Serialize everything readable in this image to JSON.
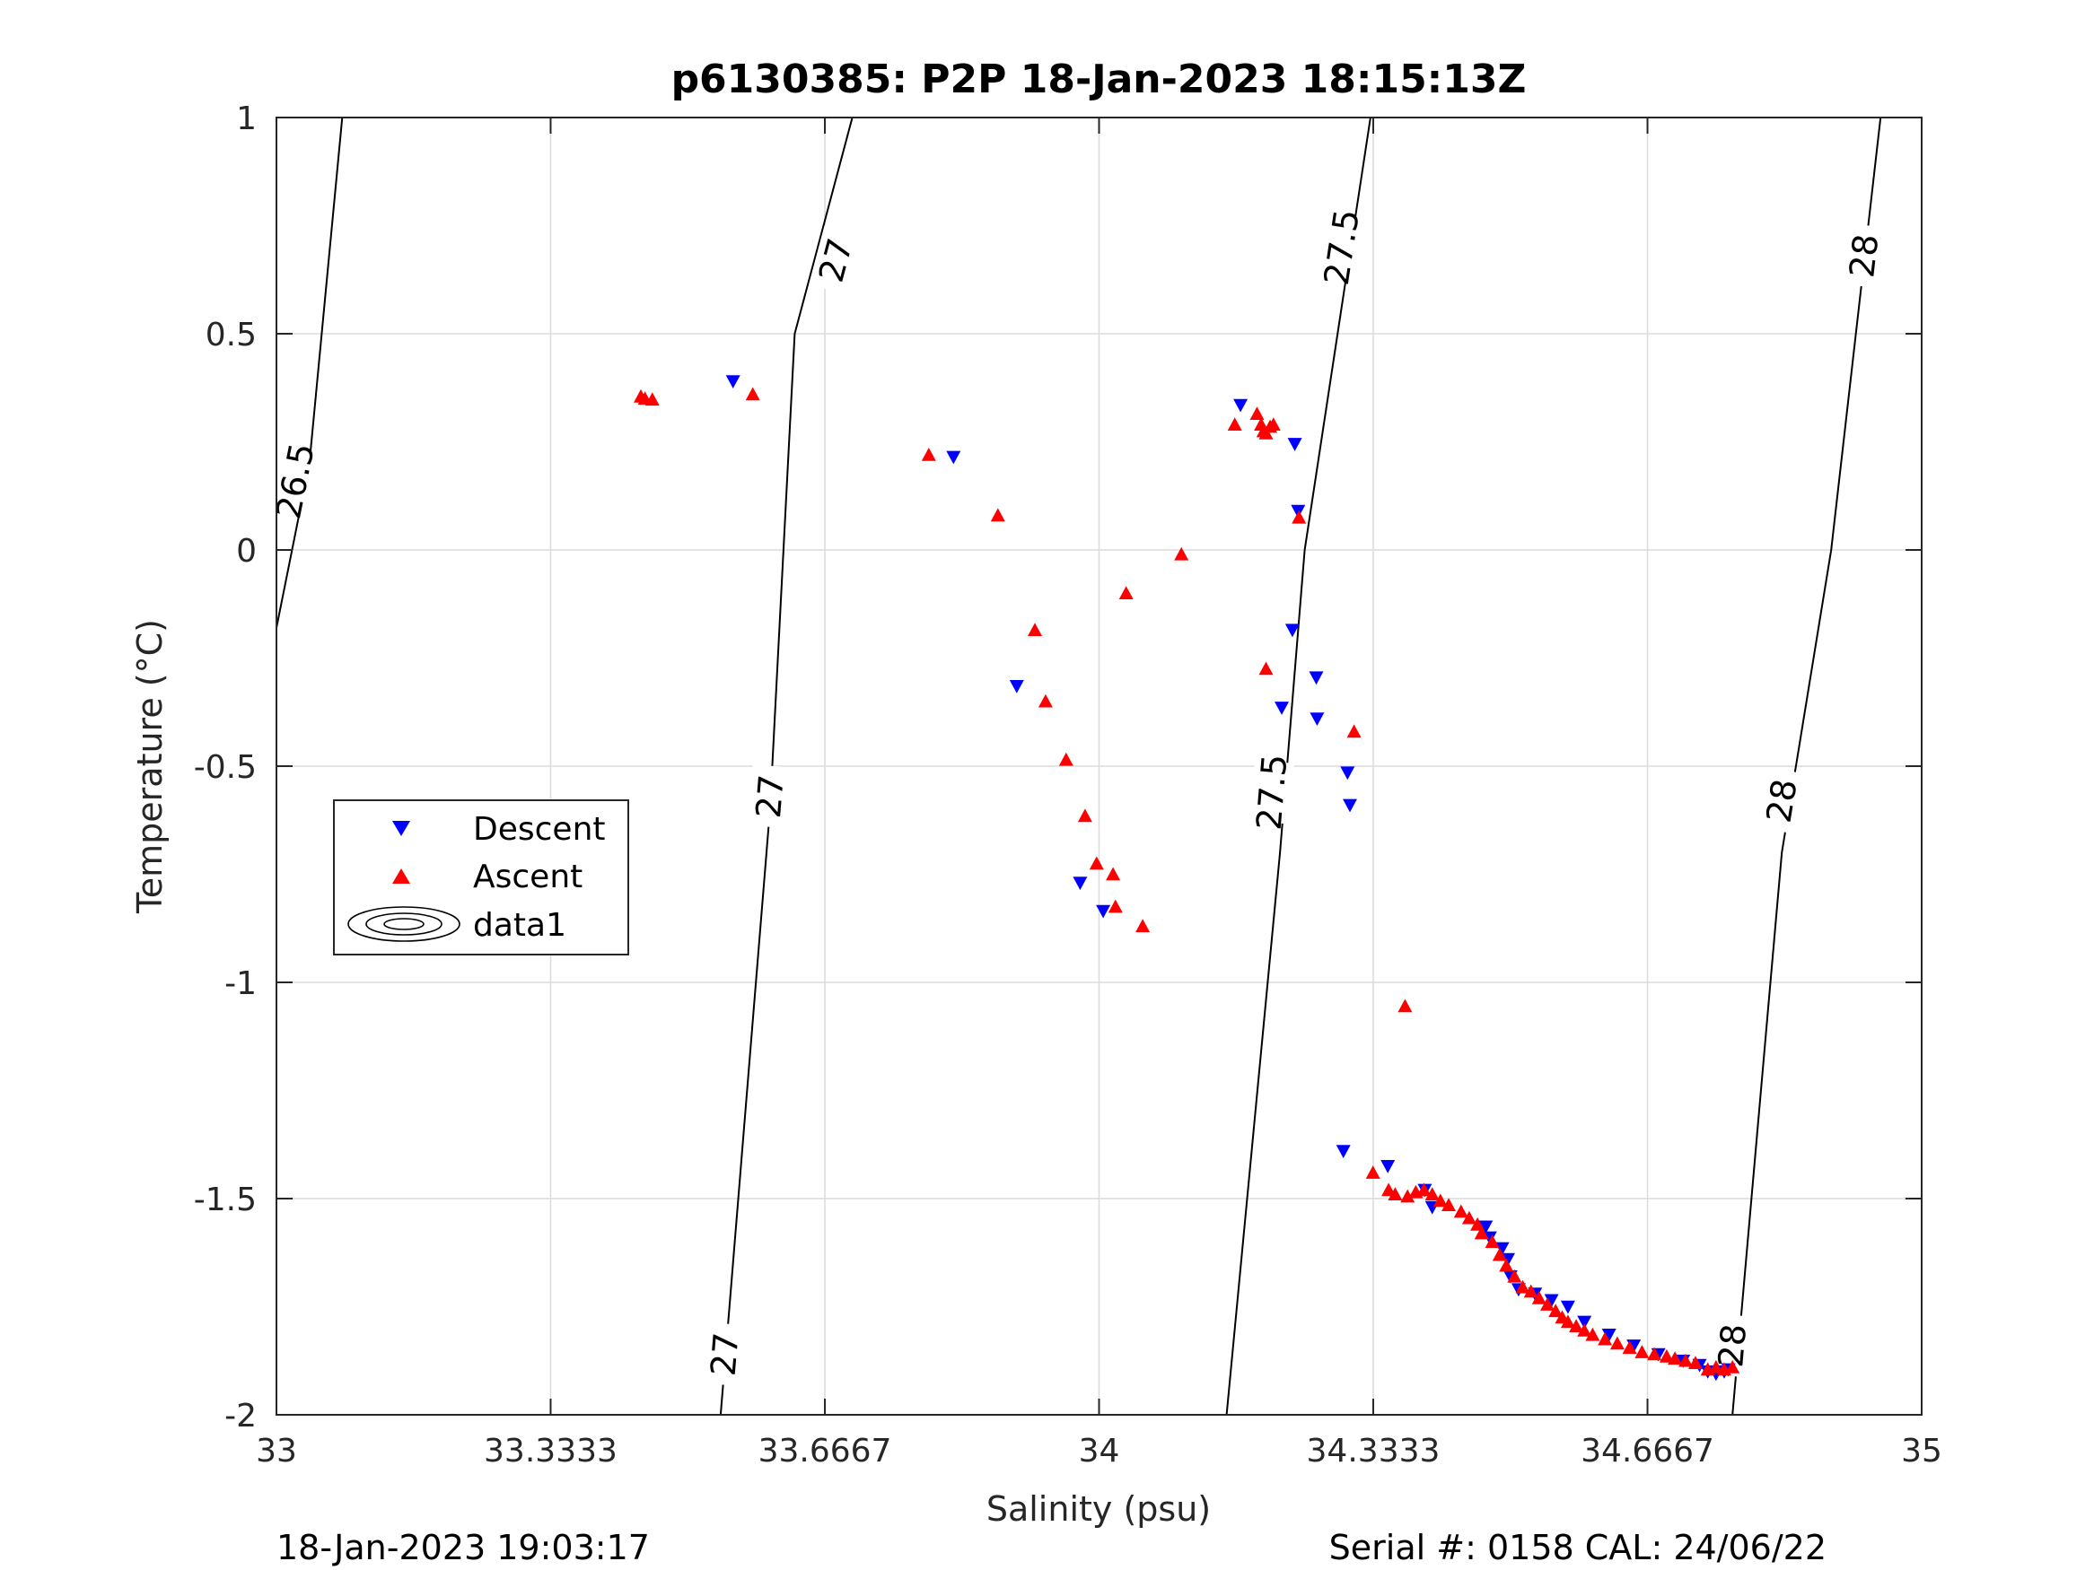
{
  "chart_data": {
    "type": "scatter",
    "title": "p6130385: P2P 18-Jan-2023 18:15:13Z",
    "xlabel": "Salinity (psu)",
    "ylabel": "Temperature (°C)",
    "xlim": [
      33,
      35
    ],
    "ylim": [
      -2,
      1
    ],
    "grid": true,
    "legend_position": "middle-left",
    "x_ticks": [
      33,
      33.3333,
      33.6667,
      34,
      34.3333,
      34.6667,
      35
    ],
    "x_tick_labels": [
      "33",
      "33.3333",
      "33.6667",
      "34",
      "34.3333",
      "34.6667",
      "35"
    ],
    "y_ticks": [
      1,
      0.5,
      0,
      -0.5,
      -1,
      -1.5,
      -2
    ],
    "y_tick_labels": [
      "1",
      "0.5",
      "0",
      "-0.5",
      "-1",
      "-1.5",
      "-2"
    ],
    "contours": [
      {
        "level": "26.5",
        "points": [
          [
            33.0,
            -0.18
          ],
          [
            33.04,
            0.2
          ],
          [
            33.08,
            1.0
          ]
        ],
        "label_points": [
          [
            33.023,
            0.16
          ]
        ]
      },
      {
        "level": "27",
        "points": [
          [
            33.54,
            -2.0
          ],
          [
            33.6,
            -0.6
          ],
          [
            33.63,
            0.5
          ],
          [
            33.7,
            1.0
          ]
        ],
        "label_points": [
          [
            33.545,
            -1.86
          ],
          [
            33.6,
            -0.57
          ],
          [
            33.68,
            0.67
          ]
        ]
      },
      {
        "level": "27.5",
        "points": [
          [
            34.155,
            -2.0
          ],
          [
            34.22,
            -0.7
          ],
          [
            34.25,
            0.0
          ],
          [
            34.33,
            1.0
          ]
        ],
        "label_points": [
          [
            34.21,
            -0.56
          ],
          [
            34.295,
            0.7
          ]
        ]
      },
      {
        "level": "28",
        "points": [
          [
            34.77,
            -2.0
          ],
          [
            34.83,
            -0.7
          ],
          [
            34.89,
            0.0
          ],
          [
            34.95,
            1.0
          ]
        ],
        "label_points": [
          [
            34.77,
            -1.84
          ],
          [
            34.83,
            -0.58
          ],
          [
            34.93,
            0.68
          ]
        ]
      }
    ],
    "series": [
      {
        "name": "Descent",
        "marker": "triangle-down",
        "color": "#0000ff",
        "points": [
          [
            33.555,
            0.39
          ],
          [
            33.823,
            0.215
          ],
          [
            33.9,
            -0.315
          ],
          [
            33.977,
            -0.77
          ],
          [
            34.005,
            -0.835
          ],
          [
            34.172,
            0.335
          ],
          [
            34.238,
            0.245
          ],
          [
            34.242,
            0.09
          ],
          [
            34.235,
            -0.185
          ],
          [
            34.222,
            -0.365
          ],
          [
            34.264,
            -0.295
          ],
          [
            34.265,
            -0.39
          ],
          [
            34.302,
            -0.515
          ],
          [
            34.305,
            -0.59
          ],
          [
            34.297,
            -1.39
          ],
          [
            34.351,
            -1.425
          ],
          [
            34.396,
            -1.48
          ],
          [
            34.405,
            -1.52
          ],
          [
            34.47,
            -1.565
          ],
          [
            34.475,
            -1.59
          ],
          [
            34.49,
            -1.615
          ],
          [
            34.497,
            -1.64
          ],
          [
            34.5,
            -1.68
          ],
          [
            34.51,
            -1.71
          ],
          [
            34.53,
            -1.72
          ],
          [
            34.55,
            -1.735
          ],
          [
            34.57,
            -1.75
          ],
          [
            34.59,
            -1.785
          ],
          [
            34.62,
            -1.815
          ],
          [
            34.65,
            -1.84
          ],
          [
            34.68,
            -1.86
          ],
          [
            34.71,
            -1.875
          ],
          [
            34.73,
            -1.885
          ],
          [
            34.74,
            -1.9
          ],
          [
            34.75,
            -1.905
          ],
          [
            34.76,
            -1.9
          ],
          [
            34.765,
            -1.895
          ]
        ]
      },
      {
        "name": "Ascent",
        "marker": "triangle-up",
        "color": "#ff0000",
        "points": [
          [
            33.443,
            0.355
          ],
          [
            33.448,
            0.35
          ],
          [
            33.457,
            0.348
          ],
          [
            33.579,
            0.36
          ],
          [
            33.793,
            0.22
          ],
          [
            33.877,
            0.08
          ],
          [
            33.922,
            -0.185
          ],
          [
            33.935,
            -0.35
          ],
          [
            33.96,
            -0.485
          ],
          [
            33.983,
            -0.615
          ],
          [
            33.997,
            -0.725
          ],
          [
            34.017,
            -0.75
          ],
          [
            34.02,
            -0.825
          ],
          [
            34.033,
            -0.1
          ],
          [
            34.053,
            -0.87
          ],
          [
            34.1,
            -0.01
          ],
          [
            34.165,
            0.29
          ],
          [
            34.192,
            0.315
          ],
          [
            34.197,
            0.29
          ],
          [
            34.2,
            0.275
          ],
          [
            34.203,
            0.27
          ],
          [
            34.208,
            0.285
          ],
          [
            34.212,
            0.29
          ],
          [
            34.243,
            0.075
          ],
          [
            34.203,
            -0.275
          ],
          [
            34.31,
            -0.42
          ],
          [
            34.372,
            -1.055
          ],
          [
            34.333,
            -1.44
          ],
          [
            34.352,
            -1.48
          ],
          [
            34.36,
            -1.49
          ],
          [
            34.375,
            -1.495
          ],
          [
            34.385,
            -1.485
          ],
          [
            34.395,
            -1.48
          ],
          [
            34.405,
            -1.49
          ],
          [
            34.415,
            -1.505
          ],
          [
            34.425,
            -1.515
          ],
          [
            34.44,
            -1.53
          ],
          [
            34.45,
            -1.545
          ],
          [
            34.46,
            -1.56
          ],
          [
            34.465,
            -1.58
          ],
          [
            34.478,
            -1.6
          ],
          [
            34.487,
            -1.63
          ],
          [
            34.495,
            -1.655
          ],
          [
            34.505,
            -1.68
          ],
          [
            34.515,
            -1.705
          ],
          [
            34.525,
            -1.715
          ],
          [
            34.535,
            -1.73
          ],
          [
            34.545,
            -1.745
          ],
          [
            34.555,
            -1.76
          ],
          [
            34.563,
            -1.775
          ],
          [
            34.57,
            -1.785
          ],
          [
            34.58,
            -1.795
          ],
          [
            34.59,
            -1.805
          ],
          [
            34.6,
            -1.815
          ],
          [
            34.615,
            -1.825
          ],
          [
            34.63,
            -1.835
          ],
          [
            34.645,
            -1.845
          ],
          [
            34.66,
            -1.855
          ],
          [
            34.675,
            -1.86
          ],
          [
            34.69,
            -1.865
          ],
          [
            34.7,
            -1.87
          ],
          [
            34.713,
            -1.875
          ],
          [
            34.725,
            -1.88
          ],
          [
            34.74,
            -1.895
          ],
          [
            34.75,
            -1.89
          ],
          [
            34.76,
            -1.895
          ],
          [
            34.77,
            -1.89
          ]
        ]
      }
    ],
    "legend": [
      "Descent",
      "Ascent",
      "data1"
    ]
  },
  "footer": {
    "left": "18-Jan-2023 19:03:17",
    "right": "Serial #: 0158  CAL: 24/06/22"
  }
}
